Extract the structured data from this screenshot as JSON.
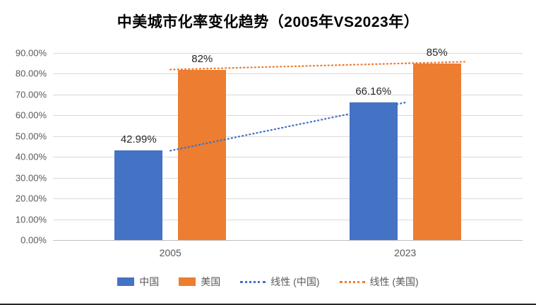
{
  "chart_data": {
    "type": "bar",
    "title": "中美城市化率变化趋势（2005年VS2023年）",
    "categories": [
      "2005",
      "2023"
    ],
    "series": [
      {
        "name": "中国",
        "color": "#4472C4",
        "values": [
          42.99,
          66.16
        ],
        "labels": [
          "42.99%",
          "66.16%"
        ]
      },
      {
        "name": "美国",
        "color": "#ED7D31",
        "values": [
          82,
          85
        ],
        "labels": [
          "82%",
          "85%"
        ]
      }
    ],
    "trendlines": [
      {
        "name": "线性 (中国)",
        "color": "#4472C4",
        "values": [
          42.99,
          66.16
        ]
      },
      {
        "name": "线性 (美国)",
        "color": "#ED7D31",
        "values": [
          82,
          85
        ]
      }
    ],
    "y_axis": {
      "min": 0,
      "max": 90,
      "step": 10,
      "ticks": [
        "0.00%",
        "10.00%",
        "20.00%",
        "30.00%",
        "40.00%",
        "50.00%",
        "60.00%",
        "70.00%",
        "80.00%",
        "90.00%"
      ]
    },
    "grid": true,
    "legend_position": "bottom"
  }
}
